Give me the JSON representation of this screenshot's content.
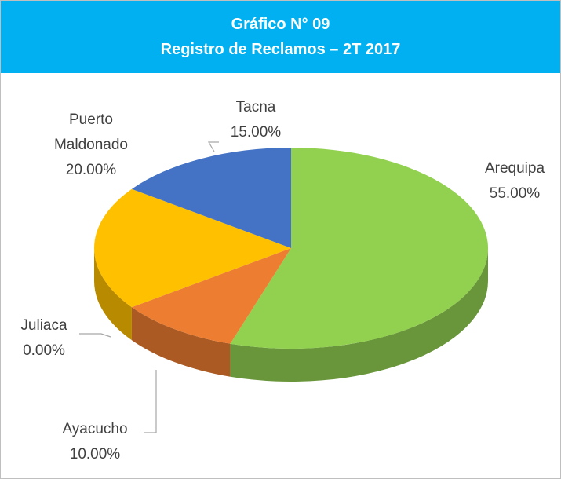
{
  "chart_data": {
    "type": "pie",
    "title": "Gráfico N° 09",
    "subtitle": "Registro de Reclamos – 2T 2017",
    "categories": [
      "Arequipa",
      "Ayacucho",
      "Juliaca",
      "Puerto Maldonado",
      "Tacna"
    ],
    "values": [
      55,
      10,
      0,
      20,
      15
    ],
    "value_labels": [
      "55.00%",
      "10.00%",
      "0.00%",
      "20.00%",
      "15.00%"
    ],
    "colors": [
      "#92d050",
      "#ed7d31",
      "#a5a5a5",
      "#ffc000",
      "#4472c4"
    ]
  }
}
